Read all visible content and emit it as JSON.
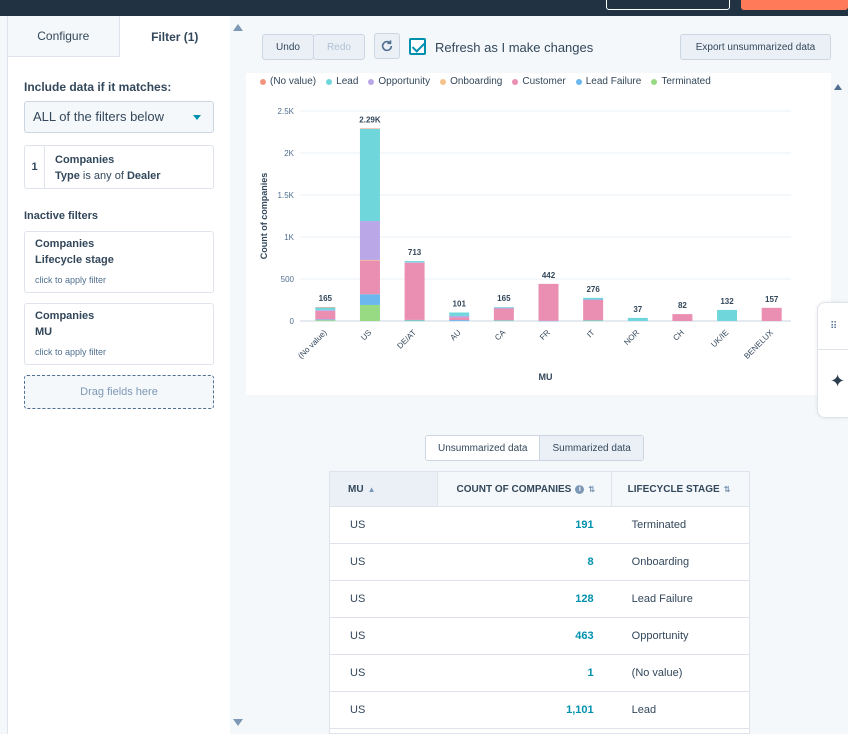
{
  "tabs": [
    {
      "label": "Configure"
    },
    {
      "label": "Filter (1)"
    }
  ],
  "filter_panel": {
    "include_label": "Include data if it matches:",
    "match_mode": "ALL of the filters below",
    "active_filter": {
      "number": "1",
      "object": "Companies",
      "property": "Type",
      "operator": " is any of ",
      "value": "Dealer"
    },
    "inactive_label": "Inactive filters",
    "inactive_filters": [
      {
        "object": "Companies",
        "property": "Lifecycle stage",
        "hint": "click to apply filter"
      },
      {
        "object": "Companies",
        "property": "MU",
        "hint": "click to apply filter"
      }
    ],
    "drag_hint": "Drag fields here"
  },
  "toolbar": {
    "undo": "Undo",
    "redo": "Redo",
    "refresh_label": "Refresh as I make changes",
    "refresh_checked": true,
    "export_label": "Export unsummarized data"
  },
  "chart_data": {
    "type": "bar",
    "stacked": true,
    "ylabel": "Count of companies",
    "xlabel": "MU",
    "ylim": [
      0,
      2500
    ],
    "yticks": [
      "0",
      "500",
      "1K",
      "1.5K",
      "2K",
      "2.5K"
    ],
    "categories": [
      "(No value)",
      "US",
      "DE/AT",
      "AU",
      "CA",
      "FR",
      "IT",
      "NOR",
      "CH",
      "UK/IE",
      "BENELUX"
    ],
    "totals": [
      "165",
      "2.29K",
      "713",
      "101",
      "165",
      "442",
      "276",
      "37",
      "82",
      "132",
      "157"
    ],
    "series": [
      {
        "name": "(No value)",
        "color": "#f2957f",
        "values": [
          5,
          1,
          0,
          0,
          0,
          0,
          0,
          0,
          0,
          0,
          0
        ]
      },
      {
        "name": "Lead",
        "color": "#6fd6dc",
        "values": [
          30,
          1101,
          15,
          40,
          10,
          0,
          20,
          37,
          0,
          132,
          0
        ]
      },
      {
        "name": "Opportunity",
        "color": "#b9a7e8",
        "values": [
          10,
          463,
          5,
          20,
          5,
          0,
          5,
          0,
          0,
          0,
          0
        ]
      },
      {
        "name": "Onboarding",
        "color": "#f5c28b",
        "values": [
          0,
          8,
          0,
          0,
          0,
          0,
          0,
          0,
          0,
          0,
          0
        ]
      },
      {
        "name": "Customer",
        "color": "#ea8fb2",
        "values": [
          100,
          400,
          680,
          30,
          140,
          440,
          240,
          0,
          82,
          0,
          157
        ]
      },
      {
        "name": "Lead Failure",
        "color": "#6bb7ee",
        "values": [
          10,
          128,
          8,
          11,
          5,
          2,
          6,
          0,
          0,
          0,
          0
        ]
      },
      {
        "name": "Terminated",
        "color": "#98d983",
        "values": [
          10,
          191,
          5,
          0,
          5,
          0,
          5,
          0,
          0,
          0,
          0
        ]
      }
    ]
  },
  "view_toggle": {
    "unsummarized": "Unsummarized data",
    "summarized": "Summarized data"
  },
  "table": {
    "headers": {
      "mu": "MU",
      "count": "COUNT OF COMPANIES",
      "stage": "LIFECYCLE STAGE"
    },
    "rows": [
      {
        "mu": "US",
        "count": "191",
        "stage": "Terminated"
      },
      {
        "mu": "US",
        "count": "8",
        "stage": "Onboarding"
      },
      {
        "mu": "US",
        "count": "128",
        "stage": "Lead Failure"
      },
      {
        "mu": "US",
        "count": "463",
        "stage": "Opportunity"
      },
      {
        "mu": "US",
        "count": "1",
        "stage": "(No value)"
      },
      {
        "mu": "US",
        "count": "1,101",
        "stage": "Lead"
      },
      {
        "mu": "",
        "count": "",
        "stage": ""
      }
    ]
  }
}
